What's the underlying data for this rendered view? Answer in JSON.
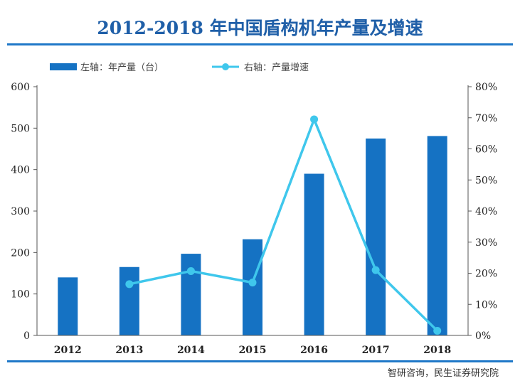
{
  "title": "2012-2018 年中国盾构机年产量及增速",
  "source": "智研咨询，民生证券研究院",
  "chart_data": {
    "type": "bar+line",
    "title": "2012-2018 年中国盾构机年产量及增速",
    "categories": [
      "2012",
      "2013",
      "2014",
      "2015",
      "2016",
      "2017",
      "2018"
    ],
    "series": [
      {
        "name": "左轴：年产量（台）",
        "type": "bar",
        "axis": "left",
        "values": [
          140,
          165,
          197,
          232,
          390,
          475,
          481
        ]
      },
      {
        "name": "右轴：产量增速",
        "type": "line",
        "axis": "right",
        "values": [
          null,
          16.5,
          20.7,
          17.0,
          69.5,
          21.0,
          1.5
        ]
      }
    ],
    "y_left": {
      "ylim": [
        0,
        600
      ],
      "ticks": [
        "0",
        "100",
        "200",
        "300",
        "400",
        "500",
        "600"
      ]
    },
    "y_right": {
      "ylim": [
        0,
        80
      ],
      "ticks": [
        "0%",
        "10%",
        "20%",
        "30%",
        "40%",
        "50%",
        "60%",
        "70%",
        "80%"
      ]
    },
    "legend_position": "top-left",
    "colors": {
      "bar": "#1572c3",
      "line": "#3fc7ec",
      "axis": "#555555"
    }
  }
}
